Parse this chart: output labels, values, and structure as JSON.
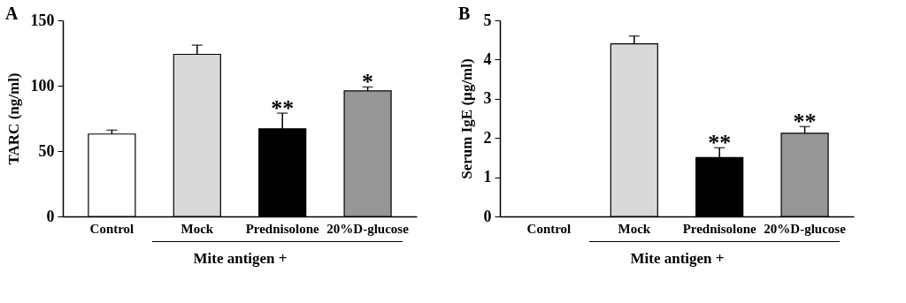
{
  "chart_data": [
    {
      "type": "bar",
      "title": "A",
      "ylabel": "TARC (ng/ml)",
      "xlabel": "Mite antigen +",
      "categories": [
        "Control",
        "Mock",
        "Prednisolone",
        "20%D-glucose"
      ],
      "values": [
        63,
        124,
        67,
        96
      ],
      "errors": [
        3,
        7,
        12,
        3
      ],
      "colors": [
        "#ffffff",
        "#d9d9d9",
        "#000000",
        "#969696"
      ],
      "ylim": [
        0,
        150
      ],
      "yticks": [
        0,
        50,
        100,
        150
      ],
      "grid": false,
      "legend": false,
      "annotations": [
        {
          "text": "**",
          "x": "Prednisolone",
          "y": 79
        },
        {
          "text": "*",
          "x": "20%D-glucose",
          "y": 99
        }
      ]
    },
    {
      "type": "bar",
      "title": "B",
      "ylabel": "Serum IgE (µg/ml)",
      "xlabel": "Mite antigen +",
      "categories": [
        "Control",
        "Mock",
        "Prednisolone",
        "20%D-glucose"
      ],
      "values": [
        null,
        4.4,
        1.5,
        2.12
      ],
      "errors": [
        null,
        0.2,
        0.25,
        0.17
      ],
      "colors": [
        "#ffffff",
        "#d9d9d9",
        "#000000",
        "#969696"
      ],
      "ylim": [
        0,
        5
      ],
      "yticks": [
        0,
        1,
        2,
        3,
        4,
        5
      ],
      "grid": false,
      "legend": false,
      "annotations": [
        {
          "text": "**",
          "x": "Prednisolone",
          "y": 1.75
        },
        {
          "text": "**",
          "x": "20%D-glucose",
          "y": 2.29
        }
      ]
    }
  ]
}
